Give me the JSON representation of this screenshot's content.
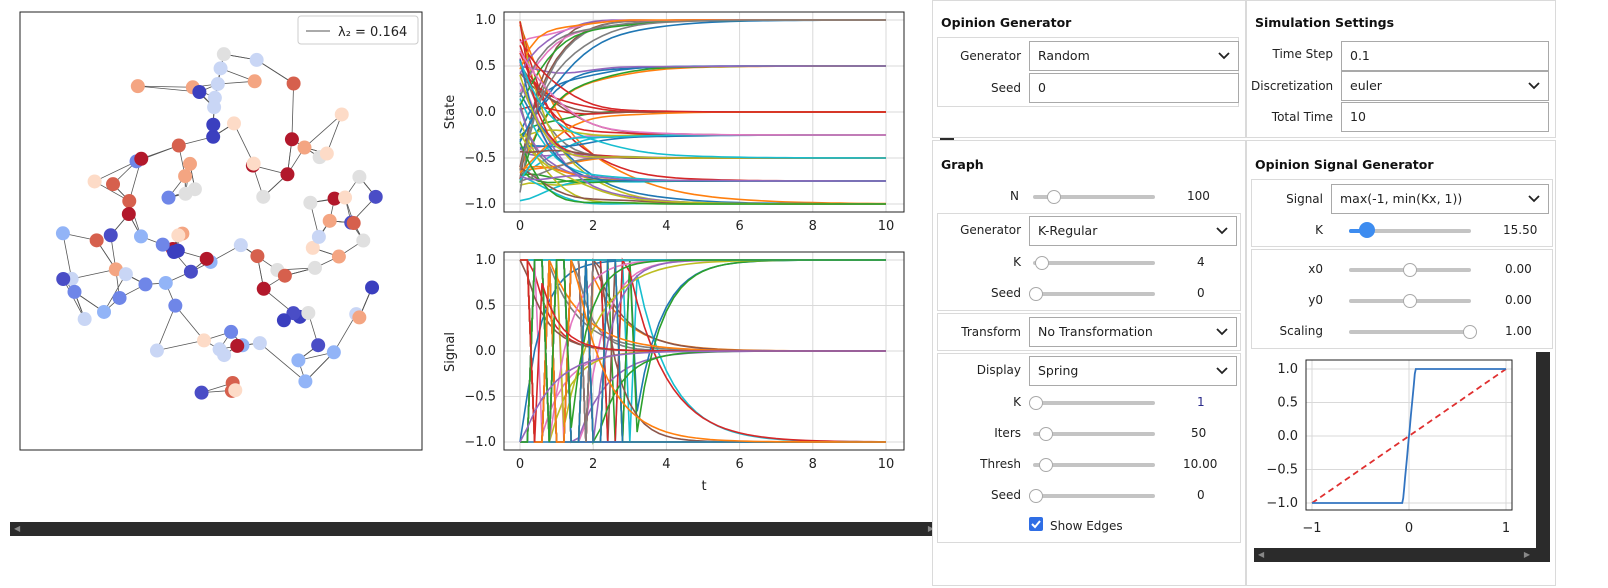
{
  "network": {
    "legend": "λ₂ = 0.164"
  },
  "plots": {
    "state_ylabel": "State",
    "signal_ylabel": "Signal",
    "xlabel": "t",
    "y_ticks": [
      "1.0",
      "0.5",
      "0.0",
      "−0.5",
      "−1.0"
    ],
    "x_ticks": [
      "0",
      "2",
      "4",
      "6",
      "8",
      "10"
    ]
  },
  "opinion_generator": {
    "title": "Opinion Generator",
    "generator_label": "Generator",
    "generator_value": "Random",
    "seed_label": "Seed",
    "seed_value": "0"
  },
  "simulation_settings": {
    "title": "Simulation Settings",
    "timestep_label": "Time Step",
    "timestep_value": "0.1",
    "discretization_label": "Discretization",
    "discretization_value": "euler",
    "totaltime_label": "Total Time",
    "totaltime_value": "10"
  },
  "graph": {
    "title": "Graph",
    "n_label": "N",
    "n_value": "100",
    "generator_label": "Generator",
    "generator_value": "K-Regular",
    "k_label": "K",
    "k_value": "4",
    "seed_label": "Seed",
    "seed_value": "0",
    "transform_label": "Transform",
    "transform_value": "No Transformation",
    "display_label": "Display",
    "display_value": "Spring",
    "dk_label": "K",
    "dk_value": "1",
    "iters_label": "Iters",
    "iters_value": "50",
    "thresh_label": "Thresh",
    "thresh_value": "10.00",
    "dseed_label": "Seed",
    "dseed_value": "0",
    "show_edges_label": "Show Edges",
    "show_edges_checked": true
  },
  "signal_generator": {
    "title": "Opinion Signal Generator",
    "signal_label": "Signal",
    "signal_value": "max(-1, min(Kx, 1))",
    "k_label": "K",
    "k_value": "15.50",
    "x0_label": "x0",
    "x0_value": "0.00",
    "y0_label": "y0",
    "y0_value": "0.00",
    "scaling_label": "Scaling",
    "scaling_value": "1.00",
    "mini_y_ticks": [
      "1.0",
      "0.5",
      "0.0",
      "−0.5",
      "−1.0"
    ],
    "mini_x_ticks": [
      "−1",
      "0",
      "1"
    ]
  },
  "colors": {
    "accent": "#3d8cf0",
    "checkbox": "#2f6ee5",
    "dark_scroll": "#2b2b2b"
  }
}
